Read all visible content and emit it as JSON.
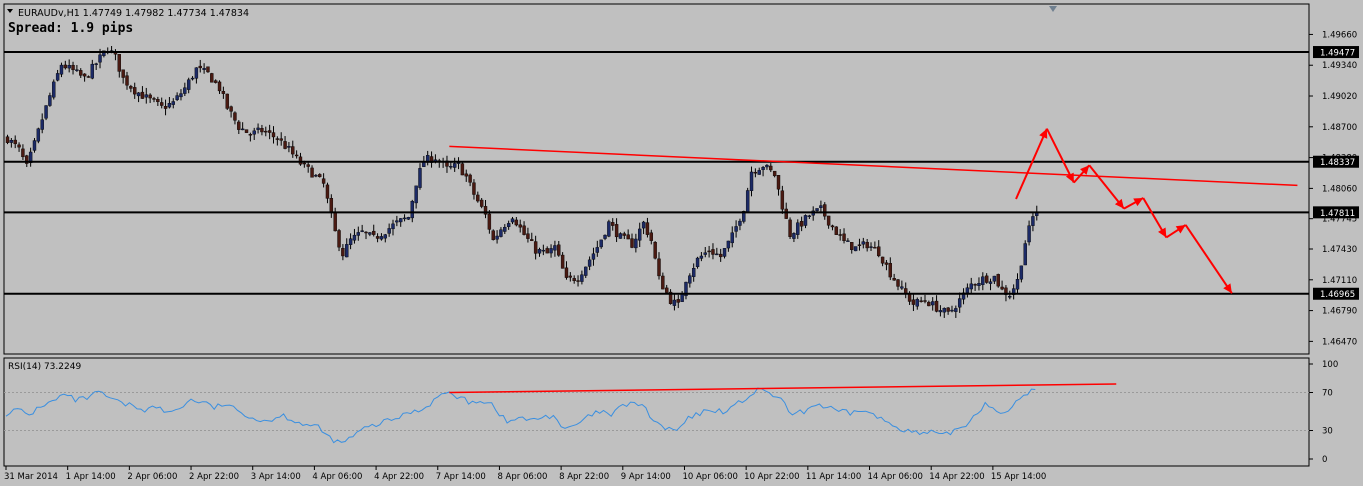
{
  "header": {
    "symbol_line": "EURAUDv,H1  1.47749 1.47982 1.47734 1.47834",
    "spread_label": "Spread: 1.9 pips"
  },
  "rsi_header": "RSI(14) 73.2249",
  "colors": {
    "background": "#c0c0c0",
    "bull_candle": "#1c2a66",
    "bear_candle": "#4a1a12",
    "level_line": "#000000",
    "trend_line": "#ff0000",
    "arrow": "#ff0000",
    "rsi_line": "#3a8fe0"
  },
  "chart_data": [
    {
      "type": "candlestick",
      "symbol": "EURAUDv",
      "timeframe": "H1",
      "ylim": [
        1.4637,
        1.4981
      ],
      "yticks": [
        "1.49660",
        "1.49340",
        "1.49020",
        "1.48700",
        "1.48380",
        "1.48060",
        "1.47745",
        "1.47430",
        "1.47110",
        "1.46790",
        "1.46470"
      ],
      "xticks": [
        "31 Mar 2014",
        "1 Apr 14:00",
        "2 Apr 06:00",
        "2 Apr 22:00",
        "3 Apr 14:00",
        "4 Apr 06:00",
        "4 Apr 22:00",
        "7 Apr 14:00",
        "8 Apr 06:00",
        "8 Apr 22:00",
        "9 Apr 14:00",
        "10 Apr 06:00",
        "10 Apr 22:00",
        "11 Apr 14:00",
        "14 Apr 06:00",
        "14 Apr 22:00",
        "15 Apr 14:00"
      ],
      "price_path": [
        [
          0,
          1.4858
        ],
        [
          3,
          1.4846
        ],
        [
          5,
          1.4828
        ],
        [
          7,
          1.4852
        ],
        [
          9,
          1.4878
        ],
        [
          11,
          1.4902
        ],
        [
          14,
          1.4935
        ],
        [
          17,
          1.4928
        ],
        [
          20,
          1.492
        ],
        [
          23,
          1.4936
        ],
        [
          26,
          1.4952
        ],
        [
          28,
          1.4942
        ],
        [
          30,
          1.492
        ],
        [
          33,
          1.4908
        ],
        [
          36,
          1.49
        ],
        [
          40,
          1.489
        ],
        [
          43,
          1.4895
        ],
        [
          46,
          1.491
        ],
        [
          49,
          1.493
        ],
        [
          52,
          1.4925
        ],
        [
          55,
          1.491
        ],
        [
          57,
          1.489
        ],
        [
          60,
          1.487
        ],
        [
          63,
          1.4862
        ],
        [
          66,
          1.4866
        ],
        [
          70,
          1.4858
        ],
        [
          73,
          1.4846
        ],
        [
          76,
          1.4832
        ],
        [
          79,
          1.4822
        ],
        [
          82,
          1.481
        ],
        [
          85,
          1.476
        ],
        [
          87,
          1.4738
        ],
        [
          89,
          1.4752
        ],
        [
          92,
          1.476
        ],
        [
          95,
          1.4754
        ],
        [
          98,
          1.4762
        ],
        [
          101,
          1.477
        ],
        [
          104,
          1.4776
        ],
        [
          106,
          1.4812
        ],
        [
          108,
          1.4835
        ],
        [
          111,
          1.4838
        ],
        [
          114,
          1.4826
        ],
        [
          117,
          1.483
        ],
        [
          119,
          1.4818
        ],
        [
          121,
          1.48
        ],
        [
          124,
          1.4778
        ],
        [
          126,
          1.4752
        ],
        [
          128,
          1.4764
        ],
        [
          131,
          1.4778
        ],
        [
          134,
          1.4758
        ],
        [
          137,
          1.4742
        ],
        [
          140,
          1.4738
        ],
        [
          142,
          1.4745
        ],
        [
          145,
          1.471
        ],
        [
          148,
          1.4714
        ],
        [
          150,
          1.4726
        ],
        [
          153,
          1.4745
        ],
        [
          156,
          1.477
        ],
        [
          159,
          1.4755
        ],
        [
          162,
          1.4748
        ],
        [
          165,
          1.477
        ],
        [
          167,
          1.4752
        ],
        [
          169,
          1.4712
        ],
        [
          172,
          1.469
        ],
        [
          174,
          1.4684
        ],
        [
          176,
          1.4712
        ],
        [
          179,
          1.4732
        ],
        [
          182,
          1.4742
        ],
        [
          185,
          1.4735
        ],
        [
          188,
          1.4756
        ],
        [
          191,
          1.4786
        ],
        [
          193,
          1.4824
        ],
        [
          196,
          1.483
        ],
        [
          199,
          1.482
        ],
        [
          201,
          1.4788
        ],
        [
          203,
          1.4758
        ],
        [
          205,
          1.4766
        ],
        [
          208,
          1.4778
        ],
        [
          211,
          1.4784
        ],
        [
          214,
          1.4766
        ],
        [
          217,
          1.475
        ],
        [
          220,
          1.4744
        ],
        [
          223,
          1.4748
        ],
        [
          226,
          1.474
        ],
        [
          229,
          1.4718
        ],
        [
          232,
          1.47
        ],
        [
          235,
          1.4686
        ],
        [
          238,
          1.469
        ],
        [
          241,
          1.4682
        ],
        [
          244,
          1.4675
        ],
        [
          247,
          1.469
        ],
        [
          250,
          1.4706
        ],
        [
          253,
          1.4712
        ],
        [
          256,
          1.4714
        ],
        [
          258,
          1.47
        ],
        [
          260,
          1.4696
        ],
        [
          262,
          1.471
        ],
        [
          264,
          1.475
        ],
        [
          266,
          1.4776
        ],
        [
          267,
          1.4783
        ]
      ],
      "levels": [
        {
          "value": 1.49477,
          "label": "1.49477"
        },
        {
          "value": 1.48337,
          "label": "1.48337"
        },
        {
          "value": 1.47811,
          "label": "1.47811"
        },
        {
          "value": 1.46965,
          "label": "1.46965"
        }
      ],
      "trendline": [
        [
          115,
          1.48496
        ],
        [
          335,
          1.48091
        ]
      ],
      "projection": [
        [
          262,
          1.4795
        ],
        [
          270,
          1.4868
        ],
        [
          277,
          1.4812
        ],
        [
          281,
          1.483
        ],
        [
          290,
          1.4785
        ],
        [
          295,
          1.4796
        ],
        [
          301,
          1.4755
        ],
        [
          306,
          1.4768
        ],
        [
          318,
          1.4697
        ]
      ]
    },
    {
      "type": "line",
      "name": "RSI(14)",
      "ylim": [
        0,
        100
      ],
      "yticks": [
        "100",
        "70",
        "30",
        "0"
      ],
      "values": [
        [
          0,
          48
        ],
        [
          3,
          52
        ],
        [
          6,
          46
        ],
        [
          9,
          56
        ],
        [
          12,
          60
        ],
        [
          15,
          68
        ],
        [
          18,
          62
        ],
        [
          21,
          64
        ],
        [
          24,
          70
        ],
        [
          27,
          64
        ],
        [
          30,
          58
        ],
        [
          33,
          56
        ],
        [
          36,
          52
        ],
        [
          39,
          55
        ],
        [
          42,
          48
        ],
        [
          45,
          54
        ],
        [
          48,
          62
        ],
        [
          51,
          60
        ],
        [
          54,
          54
        ],
        [
          57,
          58
        ],
        [
          60,
          50
        ],
        [
          63,
          46
        ],
        [
          66,
          40
        ],
        [
          69,
          42
        ],
        [
          72,
          46
        ],
        [
          75,
          40
        ],
        [
          78,
          36
        ],
        [
          81,
          33
        ],
        [
          84,
          22
        ],
        [
          87,
          16
        ],
        [
          90,
          24
        ],
        [
          93,
          32
        ],
        [
          96,
          36
        ],
        [
          99,
          40
        ],
        [
          102,
          44
        ],
        [
          105,
          50
        ],
        [
          108,
          52
        ],
        [
          111,
          62
        ],
        [
          114,
          70
        ],
        [
          117,
          66
        ],
        [
          120,
          60
        ],
        [
          123,
          62
        ],
        [
          126,
          58
        ],
        [
          128,
          48
        ],
        [
          130,
          38
        ],
        [
          133,
          44
        ],
        [
          136,
          40
        ],
        [
          139,
          44
        ],
        [
          142,
          46
        ],
        [
          145,
          30
        ],
        [
          148,
          36
        ],
        [
          151,
          44
        ],
        [
          154,
          50
        ],
        [
          157,
          46
        ],
        [
          160,
          56
        ],
        [
          163,
          60
        ],
        [
          166,
          52
        ],
        [
          168,
          40
        ],
        [
          171,
          32
        ],
        [
          174,
          30
        ],
        [
          177,
          42
        ],
        [
          180,
          48
        ],
        [
          183,
          52
        ],
        [
          186,
          50
        ],
        [
          189,
          56
        ],
        [
          192,
          64
        ],
        [
          195,
          72
        ],
        [
          198,
          70
        ],
        [
          201,
          62
        ],
        [
          204,
          46
        ],
        [
          207,
          50
        ],
        [
          210,
          58
        ],
        [
          213,
          54
        ],
        [
          216,
          50
        ],
        [
          219,
          48
        ],
        [
          222,
          52
        ],
        [
          225,
          46
        ],
        [
          228,
          40
        ],
        [
          231,
          34
        ],
        [
          234,
          30
        ],
        [
          237,
          26
        ],
        [
          240,
          28
        ],
        [
          243,
          24
        ],
        [
          246,
          30
        ],
        [
          249,
          36
        ],
        [
          252,
          50
        ],
        [
          254,
          58
        ],
        [
          257,
          52
        ],
        [
          260,
          48
        ],
        [
          263,
          64
        ],
        [
          265,
          70
        ],
        [
          267,
          73.2
        ]
      ],
      "trendline": [
        [
          115,
          70
        ],
        [
          288,
          79
        ]
      ]
    }
  ]
}
